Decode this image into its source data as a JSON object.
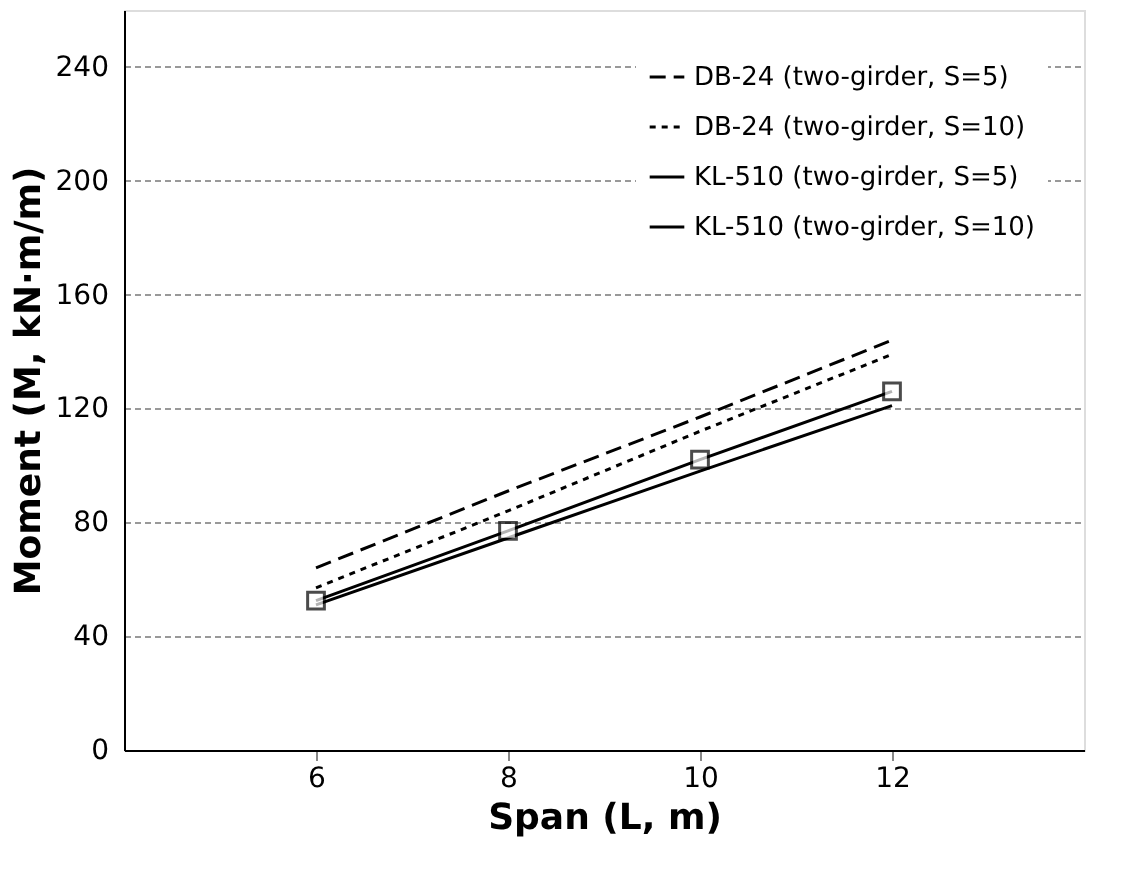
{
  "chart_data": {
    "type": "line",
    "xlabel": "Span (L, m)",
    "ylabel": "Moment (M, kN·m/m)",
    "x": [
      6,
      8,
      10,
      12
    ],
    "series": [
      {
        "name": "DB-24 (two-girder, S=5)",
        "color": "#000000",
        "line_style": "dashed",
        "marker": "none",
        "values": [
          64,
          91,
          117,
          144
        ]
      },
      {
        "name": "DB-24 (two-girder, S=10)",
        "color": "#000000",
        "line_style": "dotted",
        "marker": "none",
        "values": [
          57,
          84,
          112,
          139
        ]
      },
      {
        "name": "KL-510 (two-girder, S=5)",
        "color": "#000000",
        "line_style": "solid",
        "marker": "square",
        "values": [
          52.5,
          77,
          102,
          126
        ]
      },
      {
        "name": "KL-510 (two-girder, S=10)",
        "color": "#000000",
        "line_style": "solid",
        "marker": "none",
        "values": [
          51,
          74.5,
          98,
          121
        ]
      }
    ],
    "xlim": [
      4,
      14
    ],
    "xticks": [
      6,
      8,
      10,
      12
    ],
    "ylim": [
      0,
      260
    ],
    "yticks": [
      0,
      40,
      80,
      120,
      160,
      200,
      240
    ],
    "grid": "y",
    "legend": "top right"
  }
}
